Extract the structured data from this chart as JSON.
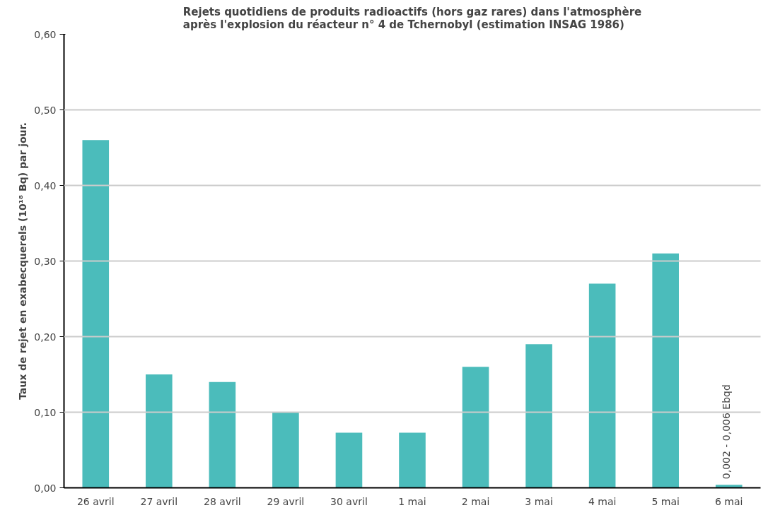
{
  "chart_data": {
    "type": "bar",
    "title": "Rejets quotidiens de produits radioactifs (hors gaz rares) dans l'atmosphère\naprès l'explosion du réacteur n° 4 de Tchernobyl (estimation INSAG 1986)",
    "ylabel": "Taux de rejet en exabecquerels (10¹⁸ Bq) par jour.",
    "categories": [
      "26 avril",
      "27 avril",
      "28 avril",
      "29 avril",
      "30 avril",
      "1 mai",
      "2 mai",
      "3 mai",
      "4 mai",
      "5 mai",
      "6 mai"
    ],
    "values": [
      0.46,
      0.15,
      0.14,
      0.1,
      0.073,
      0.073,
      0.16,
      0.19,
      0.27,
      0.31,
      0.004
    ],
    "color": "#4bbcbb",
    "ylim": [
      0,
      0.6
    ],
    "yticks": [
      {
        "value": 0,
        "label": "0,00"
      },
      {
        "value": 0.1,
        "label": "0,10"
      },
      {
        "value": 0.2,
        "label": "0,20"
      },
      {
        "value": 0.3,
        "label": "0,30"
      },
      {
        "value": 0.4,
        "label": "0,40"
      },
      {
        "value": 0.5,
        "label": "0,50"
      },
      {
        "value": 0.6,
        "label": "0,60"
      }
    ],
    "grid": "y",
    "annotations": [
      {
        "text": "0,002 - 0,006 Ebqd",
        "x": "6 mai",
        "y": 0.004
      }
    ]
  }
}
